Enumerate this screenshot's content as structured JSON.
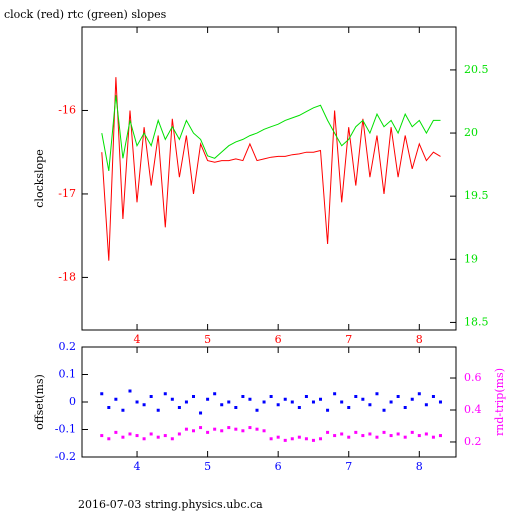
{
  "chart_data": [
    {
      "type": "line",
      "title": "clock (red) rtc (green) slopes",
      "ylabel": "clockslope",
      "x": [
        3.5,
        3.6,
        3.7,
        3.8,
        3.9,
        4.0,
        4.1,
        4.2,
        4.3,
        4.4,
        4.5,
        4.6,
        4.7,
        4.8,
        4.9,
        5.0,
        5.1,
        5.2,
        5.3,
        5.4,
        5.5,
        5.6,
        5.7,
        5.8,
        5.9,
        6.0,
        6.1,
        6.2,
        6.3,
        6.4,
        6.5,
        6.6,
        6.7,
        6.8,
        6.9,
        7.0,
        7.1,
        7.2,
        7.3,
        7.4,
        7.5,
        7.6,
        7.7,
        7.8,
        7.9,
        8.0,
        8.1,
        8.2,
        8.3
      ],
      "series": [
        {
          "name": "clock",
          "color": "#ff0000",
          "values": [
            -16.5,
            -17.8,
            -15.6,
            -17.3,
            -16.0,
            -17.1,
            -16.2,
            -16.9,
            -16.3,
            -17.4,
            -16.1,
            -16.8,
            -16.3,
            -17.0,
            -16.4,
            -16.6,
            -16.62,
            -16.6,
            -16.6,
            -16.58,
            -16.6,
            -16.4,
            -16.6,
            -16.58,
            -16.56,
            -16.55,
            -16.55,
            -16.53,
            -16.52,
            -16.5,
            -16.5,
            -16.48,
            -17.6,
            -16.0,
            -17.1,
            -16.2,
            -16.9,
            -16.1,
            -16.8,
            -16.3,
            -17.0,
            -16.2,
            -16.8,
            -16.3,
            -16.7,
            -16.4,
            -16.6,
            -16.5,
            -16.55
          ]
        },
        {
          "name": "rtc",
          "color": "#00e000",
          "axis": "y2",
          "values": [
            20.0,
            19.7,
            20.3,
            19.8,
            20.1,
            19.9,
            20.0,
            19.9,
            20.1,
            19.95,
            20.05,
            19.95,
            20.1,
            20.0,
            19.95,
            19.82,
            19.8,
            19.85,
            19.9,
            19.93,
            19.95,
            19.98,
            20.0,
            20.03,
            20.05,
            20.07,
            20.1,
            20.12,
            20.14,
            20.17,
            20.2,
            20.22,
            20.1,
            20.0,
            19.9,
            19.95,
            20.05,
            20.1,
            20.0,
            20.15,
            20.05,
            20.1,
            20.0,
            20.15,
            20.05,
            20.1,
            20.0,
            20.1,
            20.1
          ]
        }
      ],
      "xlim": [
        3.22,
        8.52
      ],
      "xticks": [
        4,
        5,
        6,
        7,
        8
      ],
      "ylim": [
        -18.63,
        -15.0
      ],
      "yticks": [
        -16,
        -17,
        -18
      ],
      "y2lim": [
        18.44,
        20.84
      ],
      "y2ticks": [
        20.5,
        20,
        19.5,
        19,
        18.5
      ]
    },
    {
      "type": "scatter",
      "ylabel": "offset(ms)",
      "y2label": "rnd-trip(ms)",
      "x": [
        3.5,
        3.6,
        3.7,
        3.8,
        3.9,
        4.0,
        4.1,
        4.2,
        4.3,
        4.4,
        4.5,
        4.6,
        4.7,
        4.8,
        4.9,
        5.0,
        5.1,
        5.2,
        5.3,
        5.4,
        5.5,
        5.6,
        5.7,
        5.8,
        5.9,
        6.0,
        6.1,
        6.2,
        6.3,
        6.4,
        6.5,
        6.6,
        6.7,
        6.8,
        6.9,
        7.0,
        7.1,
        7.2,
        7.3,
        7.4,
        7.5,
        7.6,
        7.7,
        7.8,
        7.9,
        8.0,
        8.1,
        8.2,
        8.3
      ],
      "series": [
        {
          "name": "offset",
          "color": "#0000ff",
          "values": [
            0.03,
            -0.02,
            0.01,
            -0.03,
            0.04,
            0.0,
            -0.01,
            0.02,
            -0.03,
            0.03,
            0.01,
            -0.02,
            0.0,
            0.02,
            -0.04,
            0.01,
            0.03,
            -0.01,
            0.0,
            -0.02,
            0.02,
            0.01,
            -0.03,
            0.0,
            0.02,
            -0.01,
            0.01,
            0.0,
            -0.02,
            0.02,
            0.0,
            0.01,
            -0.03,
            0.03,
            0.0,
            -0.02,
            0.02,
            0.01,
            -0.01,
            0.03,
            -0.03,
            0.0,
            0.02,
            -0.02,
            0.01,
            0.03,
            -0.01,
            0.02,
            0.0
          ]
        },
        {
          "name": "rnd-trip",
          "color": "#ff00ff",
          "axis": "y2",
          "values": [
            0.24,
            0.22,
            0.26,
            0.23,
            0.25,
            0.24,
            0.22,
            0.25,
            0.23,
            0.24,
            0.22,
            0.25,
            0.28,
            0.27,
            0.29,
            0.26,
            0.28,
            0.27,
            0.29,
            0.28,
            0.27,
            0.29,
            0.28,
            0.27,
            0.22,
            0.23,
            0.21,
            0.22,
            0.23,
            0.22,
            0.21,
            0.22,
            0.26,
            0.24,
            0.25,
            0.23,
            0.26,
            0.24,
            0.25,
            0.23,
            0.26,
            0.24,
            0.25,
            0.23,
            0.26,
            0.24,
            0.25,
            0.23,
            0.24
          ]
        }
      ],
      "xlim": [
        3.22,
        8.52
      ],
      "xticks": [
        4,
        5,
        6,
        7,
        8
      ],
      "ylim": [
        -0.2,
        0.2
      ],
      "yticks": [
        0.2,
        0.1,
        0,
        -0.1,
        -0.2
      ],
      "y2lim": [
        0.106,
        0.794
      ],
      "y2ticks": [
        0.6,
        0.4,
        0.2
      ]
    }
  ],
  "footer": "2016-07-03 string.physics.ubc.ca"
}
